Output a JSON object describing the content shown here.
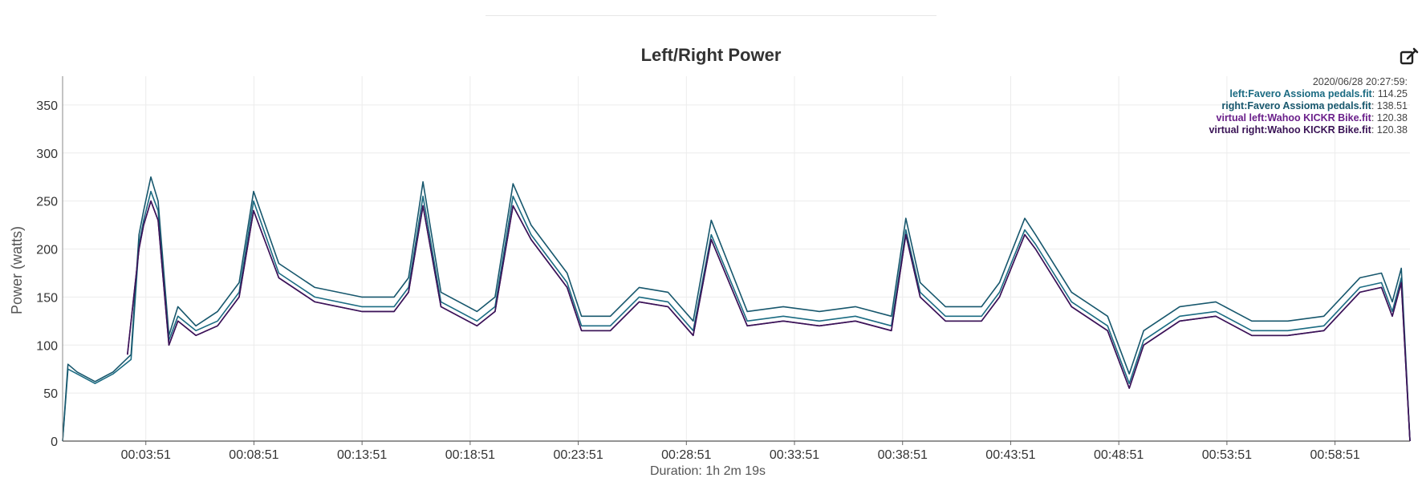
{
  "chart_data": {
    "type": "line",
    "title": "Left/Right Power",
    "ylabel": "Power (watts)",
    "xlabel": "Duration: 1h 2m 19s",
    "ylim": [
      0,
      380
    ],
    "xlim_seconds": [
      0,
      3739
    ],
    "grid": true,
    "legend_position": "top-right",
    "y_ticks": [
      0,
      50,
      100,
      150,
      200,
      250,
      300,
      350
    ],
    "x_ticks": [
      {
        "seconds": 231,
        "label": "00:03:51"
      },
      {
        "seconds": 531,
        "label": "00:08:51"
      },
      {
        "seconds": 831,
        "label": "00:13:51"
      },
      {
        "seconds": 1131,
        "label": "00:18:51"
      },
      {
        "seconds": 1431,
        "label": "00:23:51"
      },
      {
        "seconds": 1731,
        "label": "00:28:51"
      },
      {
        "seconds": 2031,
        "label": "00:33:51"
      },
      {
        "seconds": 2331,
        "label": "00:38:51"
      },
      {
        "seconds": 2631,
        "label": "00:43:51"
      },
      {
        "seconds": 2931,
        "label": "00:48:51"
      },
      {
        "seconds": 3231,
        "label": "00:53:51"
      },
      {
        "seconds": 3531,
        "label": "00:58:51"
      }
    ],
    "legend_header": "2020/06/28 20:27:59:",
    "series": [
      {
        "name": "left:Favero Assioma pedals.fit",
        "legend_value": "114.25",
        "color": "#1b6b82",
        "x": [
          0,
          15,
          40,
          90,
          140,
          190,
          212,
          225,
          245,
          265,
          295,
          320,
          370,
          430,
          490,
          530,
          600,
          700,
          830,
          920,
          960,
          1000,
          1050,
          1150,
          1200,
          1250,
          1300,
          1400,
          1440,
          1520,
          1600,
          1680,
          1750,
          1800,
          1900,
          2000,
          2100,
          2200,
          2300,
          2340,
          2380,
          2450,
          2550,
          2600,
          2670,
          2700,
          2800,
          2900,
          2960,
          3000,
          3100,
          3200,
          3300,
          3400,
          3500,
          3600,
          3660,
          3690,
          3715,
          3739
        ],
        "values": [
          0,
          75,
          70,
          60,
          70,
          85,
          205,
          230,
          260,
          240,
          105,
          130,
          115,
          125,
          155,
          250,
          175,
          150,
          140,
          140,
          160,
          255,
          145,
          125,
          140,
          255,
          215,
          165,
          120,
          120,
          150,
          145,
          115,
          215,
          125,
          130,
          125,
          130,
          120,
          220,
          155,
          130,
          130,
          155,
          220,
          205,
          145,
          120,
          60,
          105,
          130,
          135,
          115,
          115,
          120,
          160,
          165,
          135,
          170,
          0
        ]
      },
      {
        "name": "right:Favero Assioma pedals.fit",
        "legend_value": "138.51",
        "color": "#17576d",
        "x": [
          0,
          15,
          40,
          90,
          140,
          190,
          212,
          225,
          245,
          265,
          295,
          320,
          370,
          430,
          490,
          530,
          600,
          700,
          830,
          920,
          960,
          1000,
          1050,
          1150,
          1200,
          1250,
          1300,
          1400,
          1440,
          1520,
          1600,
          1680,
          1750,
          1800,
          1900,
          2000,
          2100,
          2200,
          2300,
          2340,
          2380,
          2450,
          2550,
          2600,
          2670,
          2700,
          2800,
          2900,
          2960,
          3000,
          3100,
          3200,
          3300,
          3400,
          3500,
          3600,
          3660,
          3690,
          3715,
          3739
        ],
        "values": [
          0,
          80,
          72,
          62,
          72,
          90,
          215,
          240,
          275,
          250,
          110,
          140,
          120,
          135,
          165,
          260,
          185,
          160,
          150,
          150,
          170,
          270,
          155,
          135,
          150,
          268,
          225,
          175,
          130,
          130,
          160,
          155,
          125,
          230,
          135,
          140,
          135,
          140,
          130,
          232,
          165,
          140,
          140,
          165,
          232,
          215,
          155,
          130,
          70,
          115,
          140,
          145,
          125,
          125,
          130,
          170,
          175,
          145,
          180,
          0
        ]
      },
      {
        "name": "virtual left:Wahoo KICKR Bike.fit",
        "legend_value": "120.38",
        "color": "#6a1f8a",
        "x": [
          180,
          212,
          225,
          245,
          265,
          295,
          320,
          370,
          430,
          490,
          530,
          600,
          700,
          830,
          920,
          960,
          1000,
          1050,
          1150,
          1200,
          1250,
          1300,
          1400,
          1440,
          1520,
          1600,
          1680,
          1750,
          1800,
          1900,
          2000,
          2100,
          2200,
          2300,
          2340,
          2380,
          2450,
          2550,
          2600,
          2670,
          2700,
          2800,
          2900,
          2960,
          3000,
          3100,
          3200,
          3300,
          3400,
          3500,
          3600,
          3660,
          3690,
          3715,
          3739
        ],
        "values": [
          90,
          200,
          225,
          250,
          230,
          100,
          125,
          110,
          120,
          150,
          240,
          170,
          145,
          135,
          135,
          155,
          245,
          140,
          120,
          135,
          245,
          210,
          160,
          115,
          115,
          145,
          140,
          110,
          210,
          120,
          125,
          120,
          125,
          115,
          215,
          150,
          125,
          125,
          150,
          215,
          200,
          140,
          115,
          55,
          100,
          125,
          130,
          110,
          110,
          115,
          155,
          160,
          130,
          165,
          0
        ]
      },
      {
        "name": "virtual right:Wahoo KICKR Bike.fit",
        "legend_value": "120.38",
        "color": "#3a1456",
        "x": [
          180,
          212,
          225,
          245,
          265,
          295,
          320,
          370,
          430,
          490,
          530,
          600,
          700,
          830,
          920,
          960,
          1000,
          1050,
          1150,
          1200,
          1250,
          1300,
          1400,
          1440,
          1520,
          1600,
          1680,
          1750,
          1800,
          1900,
          2000,
          2100,
          2200,
          2300,
          2340,
          2380,
          2450,
          2550,
          2600,
          2670,
          2700,
          2800,
          2900,
          2960,
          3000,
          3100,
          3200,
          3300,
          3400,
          3500,
          3600,
          3660,
          3690,
          3715,
          3739
        ],
        "values": [
          90,
          200,
          225,
          250,
          230,
          100,
          125,
          110,
          120,
          150,
          240,
          170,
          145,
          135,
          135,
          155,
          245,
          140,
          120,
          135,
          245,
          210,
          160,
          115,
          115,
          145,
          140,
          110,
          210,
          120,
          125,
          120,
          125,
          115,
          215,
          150,
          125,
          125,
          150,
          215,
          200,
          140,
          115,
          55,
          100,
          125,
          130,
          110,
          110,
          115,
          155,
          160,
          130,
          165,
          0
        ]
      }
    ]
  },
  "toolbar": {
    "edit_icon": "edit-square-pencil-icon"
  }
}
